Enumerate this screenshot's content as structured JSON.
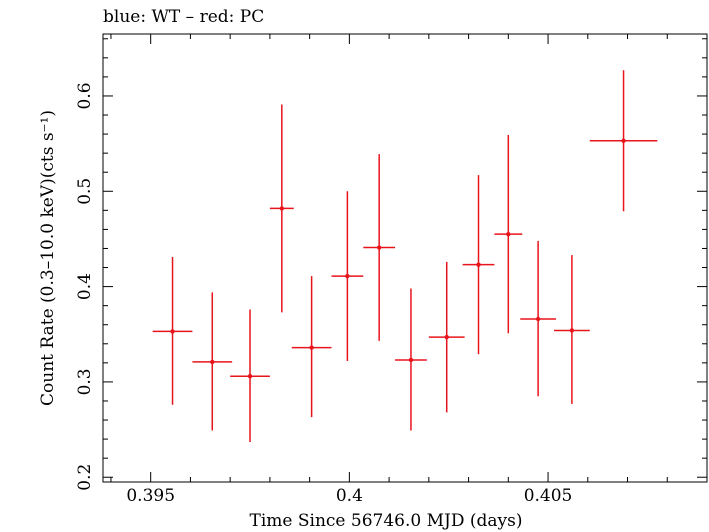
{
  "chart_data": {
    "type": "scatter",
    "title": "blue: WT – red: PC",
    "xlabel": "Time Since 56746.0 MJD (days)",
    "ylabel": "Count Rate (0.3–10.0 keV)(cts s⁻¹)",
    "xlim": [
      0.3938,
      0.409
    ],
    "ylim": [
      0.195,
      0.665
    ],
    "x_ticks": [
      0.395,
      0.4,
      0.405
    ],
    "x_tick_labels": [
      "0.395",
      "0.4",
      "0.405"
    ],
    "y_ticks": [
      0.2,
      0.3,
      0.4,
      0.5,
      0.6
    ],
    "y_tick_labels": [
      "0.2",
      "0.3",
      "0.4",
      "0.5",
      "0.6"
    ],
    "grid": false,
    "series": [
      {
        "color": "#e8141c",
        "points": [
          {
            "x": 0.39555,
            "xerr": 0.0005,
            "y": 0.353,
            "ylo": 0.276,
            "yhi": 0.431
          },
          {
            "x": 0.39655,
            "xerr": 0.0005,
            "y": 0.321,
            "ylo": 0.249,
            "yhi": 0.394
          },
          {
            "x": 0.3975,
            "xerr": 0.0005,
            "y": 0.306,
            "ylo": 0.237,
            "yhi": 0.376
          },
          {
            "x": 0.3983,
            "xerr": 0.0003,
            "y": 0.482,
            "ylo": 0.373,
            "yhi": 0.591
          },
          {
            "x": 0.39905,
            "xerr": 0.0005,
            "y": 0.336,
            "ylo": 0.263,
            "yhi": 0.411
          },
          {
            "x": 0.39995,
            "xerr": 0.0004,
            "y": 0.411,
            "ylo": 0.322,
            "yhi": 0.5
          },
          {
            "x": 0.40075,
            "xerr": 0.0004,
            "y": 0.441,
            "ylo": 0.343,
            "yhi": 0.539
          },
          {
            "x": 0.40155,
            "xerr": 0.0004,
            "y": 0.323,
            "ylo": 0.249,
            "yhi": 0.398
          },
          {
            "x": 0.40245,
            "xerr": 0.00045,
            "y": 0.347,
            "ylo": 0.268,
            "yhi": 0.426
          },
          {
            "x": 0.40325,
            "xerr": 0.0004,
            "y": 0.423,
            "ylo": 0.329,
            "yhi": 0.517
          },
          {
            "x": 0.404,
            "xerr": 0.00035,
            "y": 0.455,
            "ylo": 0.351,
            "yhi": 0.559
          },
          {
            "x": 0.40475,
            "xerr": 0.00045,
            "y": 0.366,
            "ylo": 0.285,
            "yhi": 0.448
          },
          {
            "x": 0.4056,
            "xerr": 0.00045,
            "y": 0.354,
            "ylo": 0.277,
            "yhi": 0.433
          },
          {
            "x": 0.4069,
            "xerr": 0.00085,
            "y": 0.553,
            "ylo": 0.479,
            "yhi": 0.627
          }
        ]
      }
    ]
  }
}
